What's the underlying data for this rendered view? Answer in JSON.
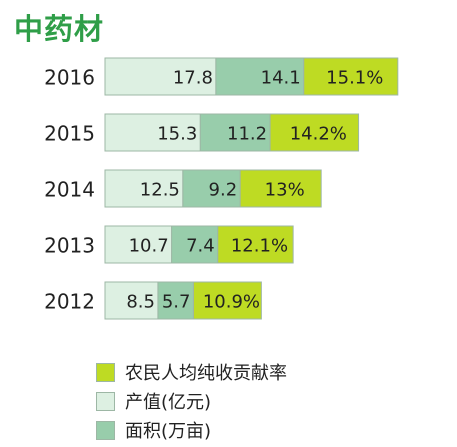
{
  "title": "中药材",
  "colors": {
    "title": "#2f9e48",
    "output": "#ddf0e2",
    "area": "#98cdab",
    "income": "#bedb23",
    "border": "#9db7a5",
    "text": "#222222"
  },
  "chart_data": {
    "type": "bar",
    "stacked": true,
    "orientation": "horizontal",
    "categories": [
      "2016",
      "2015",
      "2014",
      "2013",
      "2012"
    ],
    "series": [
      {
        "name": "产值(亿元)",
        "values": [
          17.8,
          15.3,
          12.5,
          10.7,
          8.5
        ],
        "labels": [
          "17.8",
          "15.3",
          "12.5",
          "10.7",
          "8.5"
        ]
      },
      {
        "name": "面积(万亩)",
        "values": [
          14.1,
          11.2,
          9.2,
          7.4,
          5.7
        ],
        "labels": [
          "14.1",
          "11.2",
          "9.2",
          "7.4",
          "5.7"
        ]
      },
      {
        "name": "农民人均纯收贡献率",
        "values": [
          15.1,
          14.2,
          13,
          12.1,
          10.9
        ],
        "labels": [
          "15.1%",
          "14.2%",
          "13%",
          "12.1%",
          "10.9%"
        ]
      }
    ],
    "legend": {
      "position": "bottom",
      "items": [
        {
          "name": "农民人均纯收贡献率",
          "color": "#bedb23"
        },
        {
          "name": "产值(亿元)",
          "color": "#ddf0e2"
        },
        {
          "name": "面积(万亩)",
          "color": "#98cdab"
        }
      ]
    }
  }
}
